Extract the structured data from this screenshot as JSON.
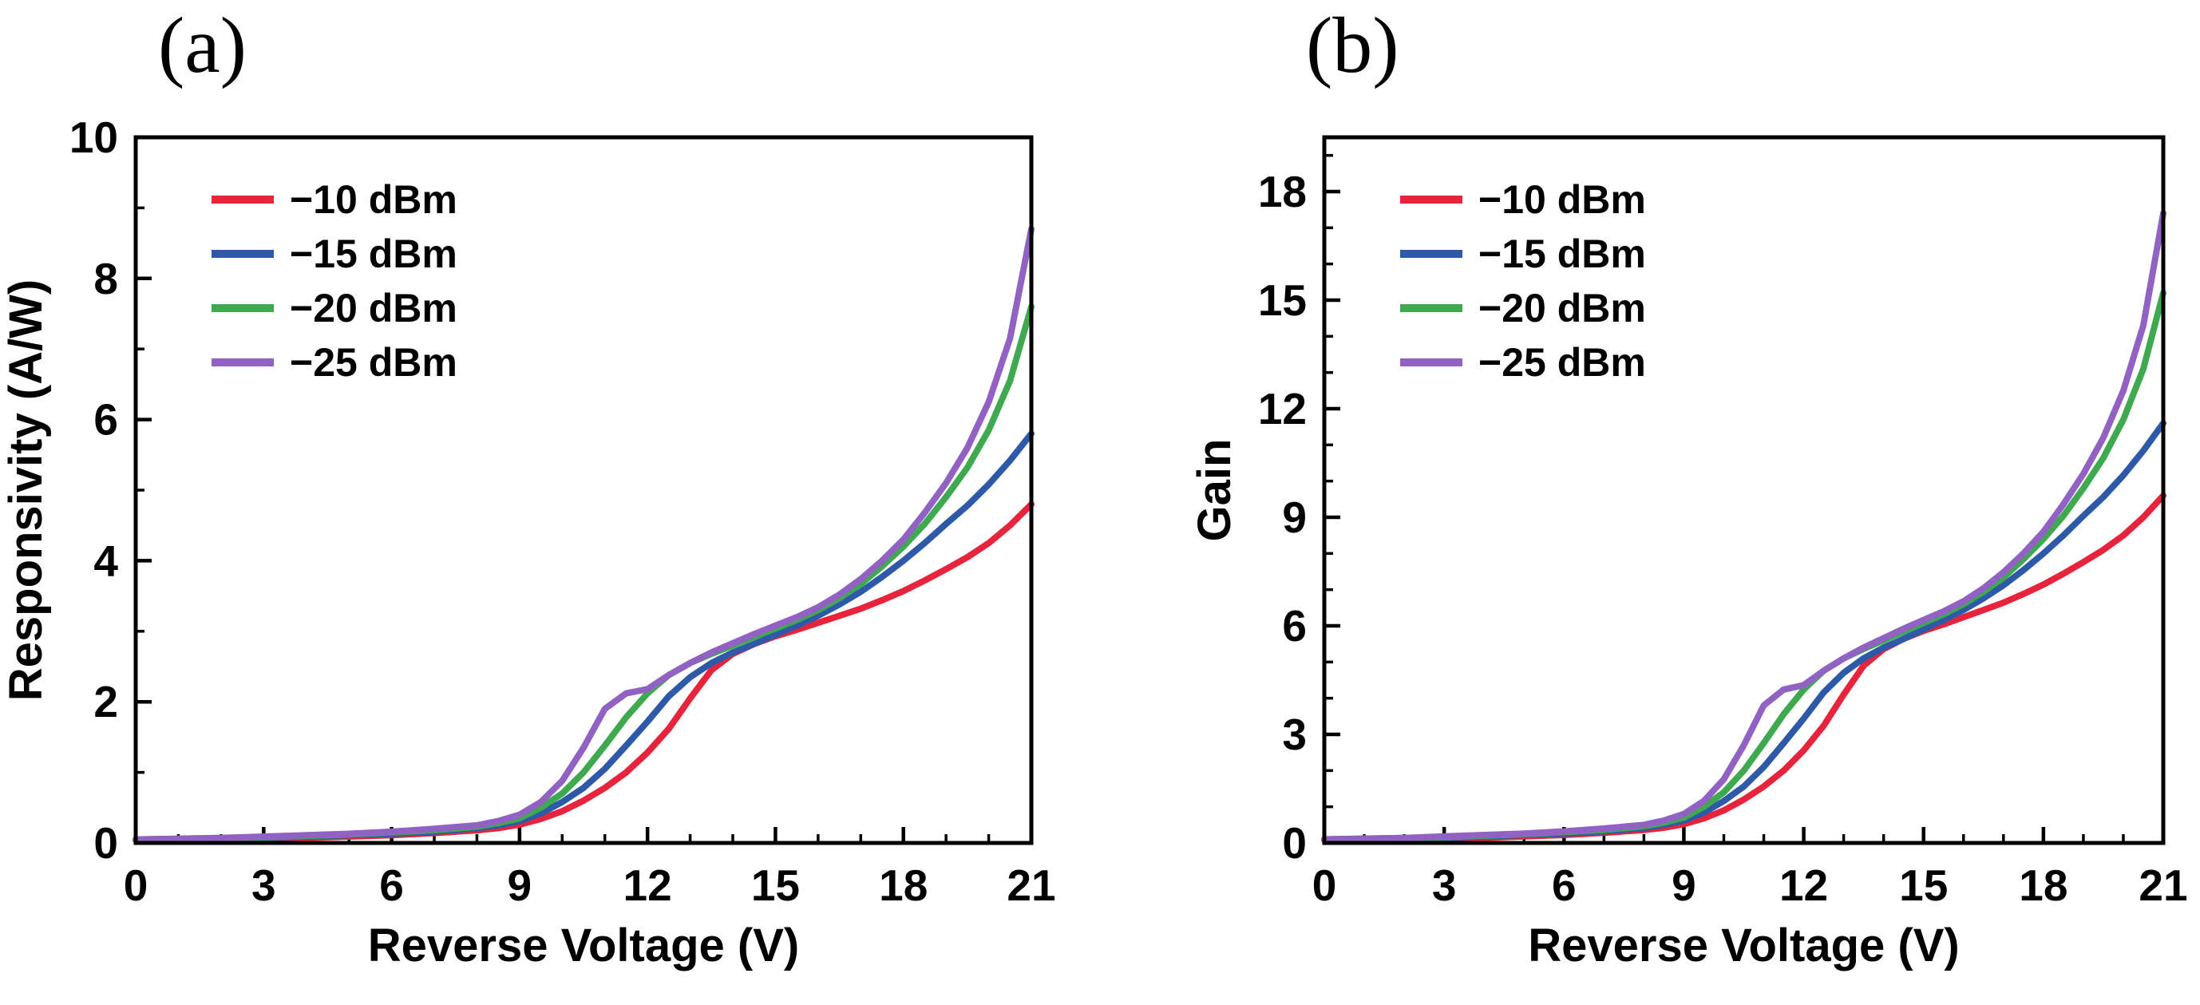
{
  "figure": {
    "background": "#ffffff",
    "text_color": "#000000"
  },
  "legend": {
    "entries": [
      {
        "label": "−10 dBm",
        "color": "#e8243c"
      },
      {
        "label": "−15 dBm",
        "color": "#2e59a8"
      },
      {
        "label": "−20 dBm",
        "color": "#3fa94f"
      },
      {
        "label": "−25 dBm",
        "color": "#9261c4"
      }
    ],
    "position": "top-left"
  },
  "chart_data": [
    {
      "type": "line",
      "panel_label": "(a)",
      "title": "",
      "xlabel": "Reverse Voltage (V)",
      "ylabel": "Responsivity (A/W)",
      "xlim": [
        0,
        21
      ],
      "ylim": [
        0,
        10
      ],
      "xticks": [
        0,
        3,
        6,
        9,
        12,
        15,
        18,
        21
      ],
      "yticks": [
        0,
        2,
        4,
        6,
        8,
        10
      ],
      "grid": false,
      "legend_position": "top-left",
      "x": [
        0,
        1,
        2,
        3,
        4,
        5,
        6,
        7,
        8,
        8.5,
        9,
        9.5,
        10,
        10.5,
        11,
        11.5,
        12,
        12.5,
        13,
        13.5,
        14,
        14.5,
        15,
        15.5,
        16,
        16.5,
        17,
        17.5,
        18,
        18.5,
        19,
        19.5,
        20,
        20.5,
        21
      ],
      "series": [
        {
          "name": "−10 dBm",
          "color": "#e8243c",
          "values": [
            0.04,
            0.04,
            0.05,
            0.06,
            0.07,
            0.09,
            0.11,
            0.14,
            0.18,
            0.21,
            0.26,
            0.34,
            0.45,
            0.6,
            0.78,
            1.0,
            1.28,
            1.62,
            2.05,
            2.45,
            2.68,
            2.82,
            2.93,
            3.02,
            3.12,
            3.22,
            3.32,
            3.44,
            3.57,
            3.72,
            3.88,
            4.05,
            4.25,
            4.5,
            4.8
          ]
        },
        {
          "name": "−15 dBm",
          "color": "#2e59a8",
          "values": [
            0.05,
            0.05,
            0.06,
            0.07,
            0.09,
            0.11,
            0.13,
            0.16,
            0.21,
            0.25,
            0.31,
            0.42,
            0.58,
            0.78,
            1.05,
            1.38,
            1.72,
            2.08,
            2.35,
            2.55,
            2.7,
            2.82,
            2.95,
            3.08,
            3.22,
            3.38,
            3.56,
            3.77,
            4.0,
            4.25,
            4.52,
            4.78,
            5.08,
            5.42,
            5.8
          ]
        },
        {
          "name": "−20 dBm",
          "color": "#3fa94f",
          "values": [
            0.05,
            0.06,
            0.07,
            0.08,
            0.1,
            0.12,
            0.15,
            0.18,
            0.23,
            0.28,
            0.35,
            0.5,
            0.7,
            1.0,
            1.38,
            1.78,
            2.12,
            2.38,
            2.55,
            2.68,
            2.8,
            2.92,
            3.04,
            3.16,
            3.3,
            3.47,
            3.67,
            3.92,
            4.2,
            4.52,
            4.9,
            5.32,
            5.85,
            6.55,
            7.6
          ]
        },
        {
          "name": "−25 dBm",
          "color": "#9261c4",
          "values": [
            0.05,
            0.06,
            0.07,
            0.09,
            0.11,
            0.13,
            0.16,
            0.2,
            0.25,
            0.31,
            0.4,
            0.58,
            0.88,
            1.35,
            1.9,
            2.12,
            2.18,
            2.38,
            2.55,
            2.7,
            2.83,
            2.96,
            3.08,
            3.2,
            3.34,
            3.52,
            3.74,
            4.0,
            4.3,
            4.68,
            5.1,
            5.6,
            6.25,
            7.15,
            8.7
          ]
        }
      ]
    },
    {
      "type": "line",
      "panel_label": "(b)",
      "title": "",
      "xlabel": "Reverse Voltage (V)",
      "ylabel": "Gain",
      "xlim": [
        0,
        21
      ],
      "ylim": [
        0,
        19.5
      ],
      "xticks": [
        0,
        3,
        6,
        9,
        12,
        15,
        18,
        21
      ],
      "yticks": [
        0,
        3,
        6,
        9,
        12,
        15,
        18
      ],
      "grid": false,
      "legend_position": "top-left",
      "x": [
        0,
        1,
        2,
        3,
        4,
        5,
        6,
        7,
        8,
        8.5,
        9,
        9.5,
        10,
        10.5,
        11,
        11.5,
        12,
        12.5,
        13,
        13.5,
        14,
        14.5,
        15,
        15.5,
        16,
        16.5,
        17,
        17.5,
        18,
        18.5,
        19,
        19.5,
        20,
        20.5,
        21
      ],
      "series": [
        {
          "name": "−10 dBm",
          "color": "#e8243c",
          "values": [
            0.08,
            0.08,
            0.1,
            0.12,
            0.14,
            0.18,
            0.22,
            0.28,
            0.36,
            0.42,
            0.52,
            0.68,
            0.9,
            1.2,
            1.56,
            2.0,
            2.56,
            3.24,
            4.1,
            4.9,
            5.36,
            5.64,
            5.86,
            6.04,
            6.24,
            6.44,
            6.64,
            6.88,
            7.14,
            7.44,
            7.76,
            8.1,
            8.5,
            9.0,
            9.6
          ]
        },
        {
          "name": "−15 dBm",
          "color": "#2e59a8",
          "values": [
            0.1,
            0.1,
            0.12,
            0.14,
            0.18,
            0.22,
            0.26,
            0.32,
            0.42,
            0.5,
            0.62,
            0.84,
            1.16,
            1.56,
            2.1,
            2.76,
            3.44,
            4.16,
            4.7,
            5.1,
            5.4,
            5.64,
            5.9,
            6.16,
            6.44,
            6.76,
            7.12,
            7.54,
            8.0,
            8.5,
            9.04,
            9.56,
            10.16,
            10.84,
            11.6
          ]
        },
        {
          "name": "−20 dBm",
          "color": "#3fa94f",
          "values": [
            0.1,
            0.12,
            0.14,
            0.16,
            0.2,
            0.24,
            0.3,
            0.36,
            0.46,
            0.56,
            0.7,
            1.0,
            1.4,
            2.0,
            2.76,
            3.56,
            4.24,
            4.76,
            5.1,
            5.36,
            5.6,
            5.84,
            6.08,
            6.32,
            6.6,
            6.94,
            7.34,
            7.84,
            8.4,
            9.04,
            9.8,
            10.64,
            11.7,
            13.1,
            15.2
          ]
        },
        {
          "name": "−25 dBm",
          "color": "#9261c4",
          "values": [
            0.1,
            0.12,
            0.14,
            0.18,
            0.22,
            0.26,
            0.32,
            0.4,
            0.5,
            0.62,
            0.8,
            1.16,
            1.76,
            2.7,
            3.8,
            4.24,
            4.36,
            4.76,
            5.1,
            5.4,
            5.66,
            5.92,
            6.16,
            6.4,
            6.68,
            7.04,
            7.48,
            8.0,
            8.6,
            9.36,
            10.2,
            11.2,
            12.5,
            14.3,
            17.4
          ]
        }
      ]
    }
  ]
}
